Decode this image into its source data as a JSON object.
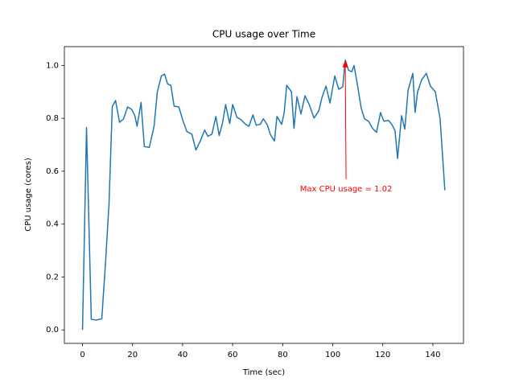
{
  "chart_data": {
    "type": "line",
    "title": "CPU usage over Time",
    "x_label": "Time (sec)",
    "y_label": "CPU usage (cores)",
    "x": [
      0,
      1.6,
      3.5,
      5.5,
      7.7,
      9.3,
      10.6,
      11.9,
      13.2,
      14.8,
      16.4,
      18,
      19.6,
      20.9,
      21.8,
      23.4,
      24.7,
      26.7,
      28.6,
      29.9,
      31.5,
      32.8,
      34,
      35.3,
      36.6,
      38.5,
      40.1,
      41.7,
      43.7,
      45.3,
      47.2,
      48.8,
      50.1,
      51.7,
      53.3,
      54.6,
      55.9,
      57.2,
      58.8,
      60,
      61.7,
      63.3,
      65.2,
      66.5,
      68.1,
      69.4,
      71,
      72.3,
      73.9,
      75.1,
      76.7,
      77.7,
      79.6,
      80.6,
      81.6,
      83.5,
      84.5,
      85.7,
      87.3,
      88.9,
      90.6,
      92.5,
      94.4,
      95.7,
      97.3,
      98.9,
      100.8,
      102.4,
      104,
      105,
      106.3,
      107.6,
      108.5,
      109.8,
      111.4,
      112.7,
      114.3,
      115.9,
      117.5,
      119.1,
      120.4,
      122.3,
      123.6,
      124.9,
      125.9,
      127.5,
      128.8,
      130.1,
      132,
      132.9,
      133.9,
      135.5,
      137.4,
      139,
      141,
      142.9,
      144.8
    ],
    "values": [
      0,
      0.765,
      0.04,
      0.037,
      0.042,
      0.27,
      0.48,
      0.845,
      0.867,
      0.785,
      0.798,
      0.843,
      0.834,
      0.81,
      0.77,
      0.86,
      0.693,
      0.69,
      0.77,
      0.9,
      0.96,
      0.967,
      0.93,
      0.925,
      0.846,
      0.843,
      0.792,
      0.75,
      0.74,
      0.68,
      0.717,
      0.756,
      0.732,
      0.74,
      0.807,
      0.735,
      0.78,
      0.852,
      0.78,
      0.852,
      0.804,
      0.795,
      0.777,
      0.77,
      0.813,
      0.774,
      0.777,
      0.798,
      0.774,
      0.738,
      0.714,
      0.807,
      0.777,
      0.822,
      0.925,
      0.9,
      0.762,
      0.882,
      0.816,
      0.885,
      0.852,
      0.801,
      0.828,
      0.879,
      0.922,
      0.858,
      0.96,
      0.91,
      0.919,
      1.02,
      0.982,
      0.976,
      1.0,
      0.93,
      0.837,
      0.798,
      0.789,
      0.762,
      0.747,
      0.822,
      0.789,
      0.792,
      0.777,
      0.753,
      0.648,
      0.81,
      0.759,
      0.906,
      0.97,
      0.822,
      0.9,
      0.945,
      0.97,
      0.922,
      0.9,
      0.798,
      0.528
    ],
    "color": "#1f77b4",
    "xlim": [
      -7.25,
      152.25
    ],
    "ylim": [
      -0.051,
      1.071
    ],
    "xticks": [
      0,
      20,
      40,
      60,
      80,
      100,
      120,
      140
    ],
    "yticks": [
      {
        "value": 0,
        "label": "0.0"
      },
      0.2,
      0.4,
      0.6,
      0.8,
      {
        "value": 1,
        "label": "1.0"
      }
    ],
    "annotations": [
      {
        "text": "Max CPU usage = 1.02",
        "x": 105,
        "y": 1.02,
        "color": "#ff0000"
      }
    ]
  }
}
